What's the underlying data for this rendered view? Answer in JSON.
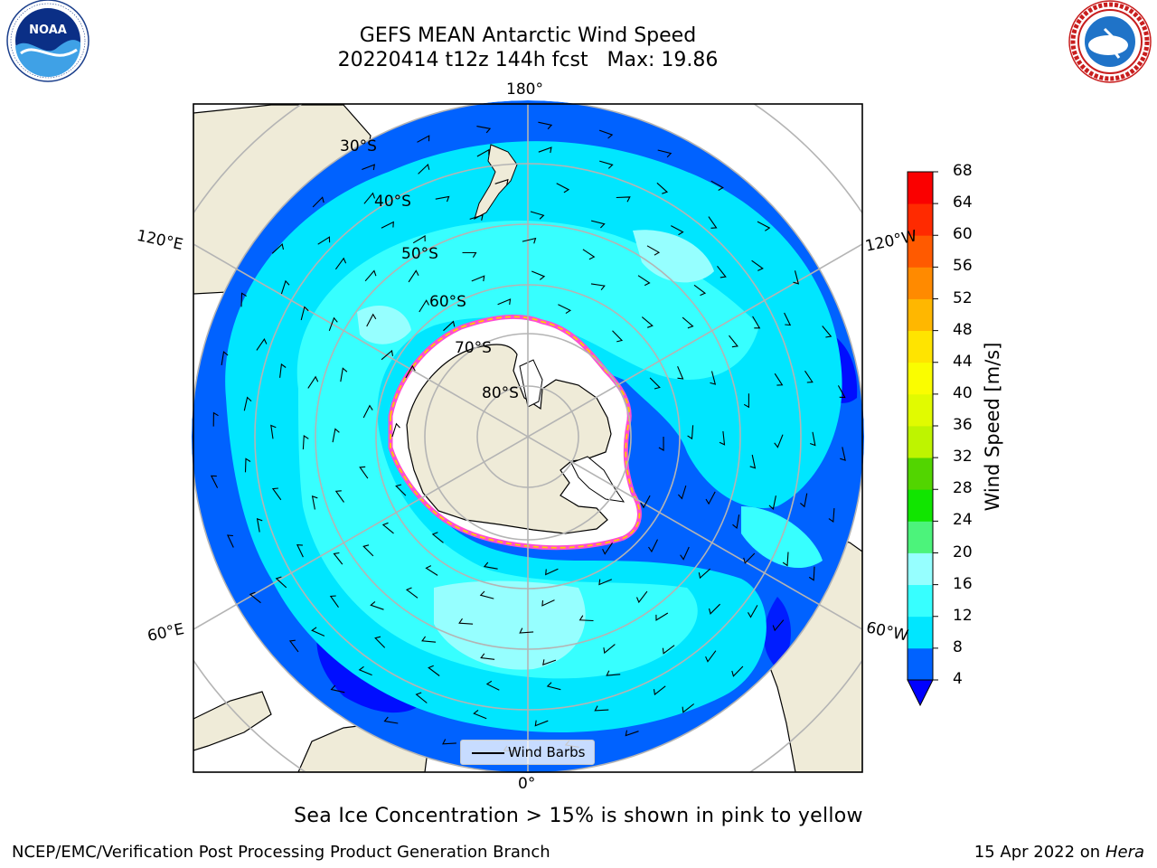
{
  "title_line1": "GEFS MEAN Antarctic Wind Speed",
  "title_line2": "20220414 t12z 144h fcst   Max: 19.86",
  "logos": {
    "left": {
      "name": "NOAA",
      "icon": "noaa-logo",
      "ring_text": "NATIONAL OCEANIC AND ATMOSPHERIC ADMINISTRATION · U.S. DEPARTMENT OF COMMERCE"
    },
    "right": {
      "name": "National Weather Service",
      "icon": "nws-logo",
      "ring_text": "NATIONAL WEATHER SERVICE"
    }
  },
  "map": {
    "projection": "south polar stereographic",
    "longitude_labels": {
      "top": "180°",
      "bottom": "0°",
      "left_upper": "120°E",
      "left_lower": "60°E",
      "right_upper": "120°W",
      "right_lower": "60°W"
    },
    "latitude_labels": [
      "30°S",
      "40°S",
      "50°S",
      "60°S",
      "70°S",
      "80°S"
    ],
    "colors": {
      "land": "#efebd8",
      "outside": "#ffffff",
      "grid": "#b4b4b4",
      "coast": "#000000"
    },
    "legend_label": "Wind Barbs"
  },
  "colorbar": {
    "label": "Wind Speed [m/s]",
    "ticks": [
      "4",
      "8",
      "12",
      "16",
      "20",
      "24",
      "28",
      "32",
      "36",
      "40",
      "44",
      "48",
      "52",
      "56",
      "60",
      "64",
      "68"
    ],
    "colors": [
      "#0062ff",
      "#00e6ff",
      "#37ffff",
      "#96ffff",
      "#4cf37b",
      "#11e500",
      "#52d500",
      "#bef400",
      "#e1fb00",
      "#fafd00",
      "#ffe400",
      "#ffb700",
      "#ff8a00",
      "#ff5a00",
      "#ff2a00",
      "#fa0000"
    ],
    "under_color": "#0000ff"
  },
  "subtitle": "Sea Ice Concentration > 15% is shown in pink to yellow",
  "footer_left": "NCEP/EMC/Verification Post Processing Product Generation Branch",
  "footer_date": "15 Apr 2022 on ",
  "footer_host": "Hera"
}
